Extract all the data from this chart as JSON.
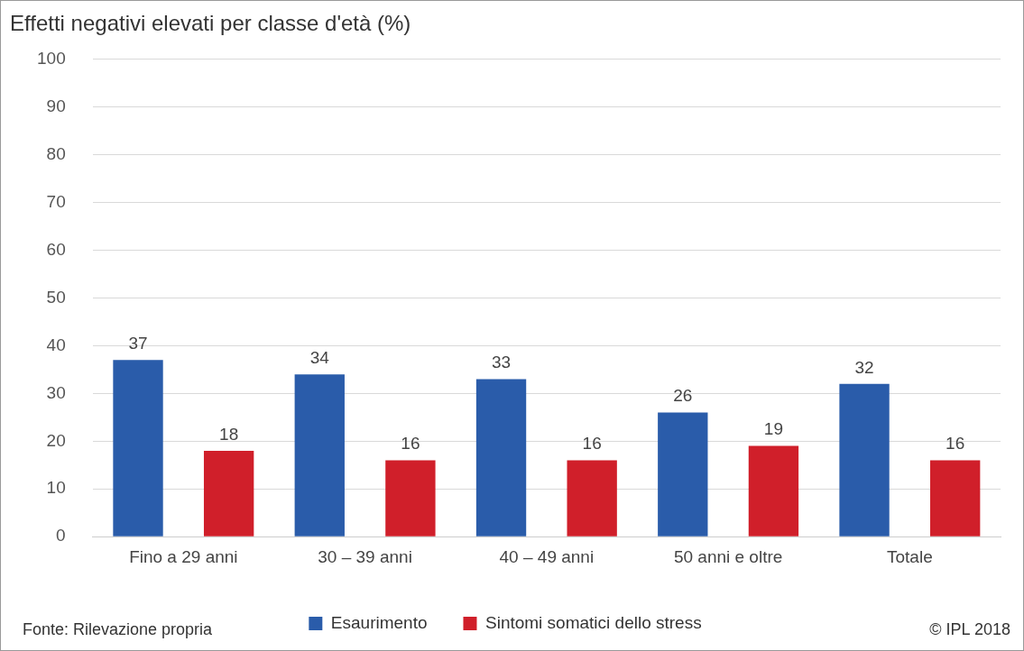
{
  "chart_data": {
    "type": "bar",
    "title": "Effetti negativi elevati per classe d'età (%)",
    "categories": [
      "Fino a 29 anni",
      "30 – 39 anni",
      "40 – 49 anni",
      "50 anni e oltre",
      "Totale"
    ],
    "series": [
      {
        "name": "Esaurimento",
        "color": "#2a5caa",
        "values": [
          37,
          34,
          33,
          26,
          32
        ]
      },
      {
        "name": "Sintomi somatici dello stress",
        "color": "#d01f2a",
        "values": [
          18,
          16,
          16,
          19,
          16
        ]
      }
    ],
    "ylim": [
      0,
      100
    ],
    "yticks": [
      0,
      10,
      20,
      30,
      40,
      50,
      60,
      70,
      80,
      90,
      100
    ],
    "grid": "y",
    "legend": "bottom",
    "data_labels": true,
    "annotations": [
      "Fonte: Rilevazione propria",
      "© IPL 2018"
    ]
  }
}
